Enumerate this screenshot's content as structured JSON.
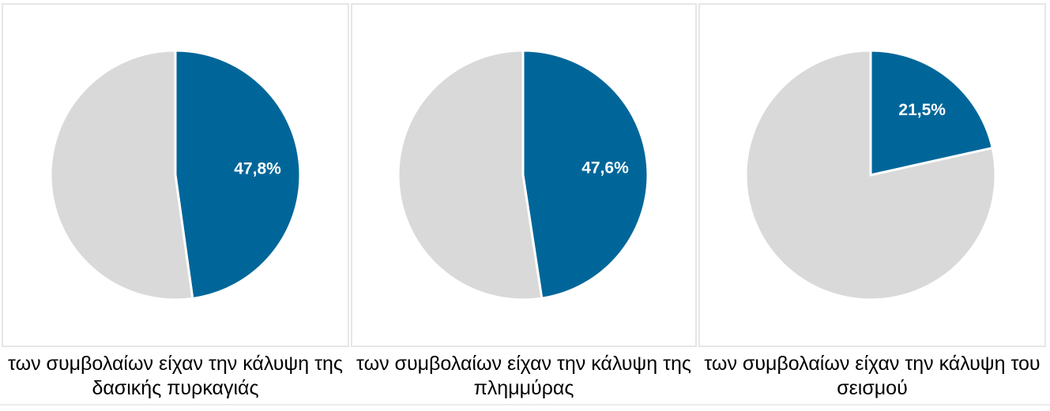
{
  "colors": {
    "highlight": "#006699",
    "remainder": "#d9d9d9",
    "slice_border": "#ffffff",
    "panel_border": "#e6e6e6"
  },
  "chart_data": [
    {
      "type": "pie",
      "slices": [
        {
          "value": 47.8,
          "label": "47,8%",
          "color": "#006699"
        },
        {
          "value": 52.2,
          "label": "",
          "color": "#d9d9d9"
        }
      ],
      "caption_line1": "των συμβολαίων είχαν την κάλυψη της",
      "caption_line2": "δασικής πυρκαγιάς"
    },
    {
      "type": "pie",
      "slices": [
        {
          "value": 47.6,
          "label": "47,6%",
          "color": "#006699"
        },
        {
          "value": 52.4,
          "label": "",
          "color": "#d9d9d9"
        }
      ],
      "caption_line1": "των συμβολαίων είχαν την κάλυψη της",
      "caption_line2": "πλημμύρας"
    },
    {
      "type": "pie",
      "slices": [
        {
          "value": 21.5,
          "label": "21,5%",
          "color": "#006699"
        },
        {
          "value": 78.5,
          "label": "",
          "color": "#d9d9d9"
        }
      ],
      "caption_line1": "των συμβολαίων είχαν την κάλυψη του",
      "caption_line2": "σεισμού"
    }
  ]
}
